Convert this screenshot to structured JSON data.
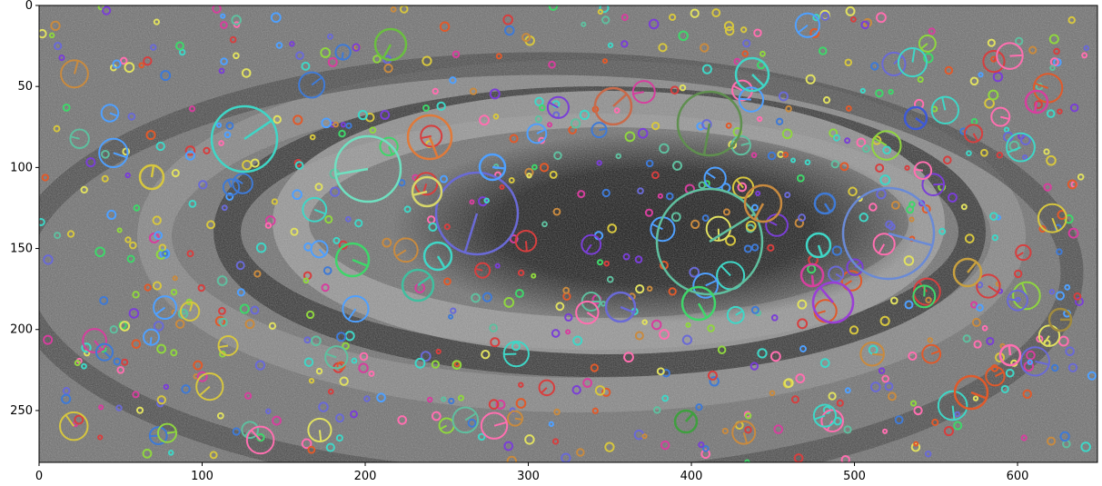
{
  "figure": {
    "x_ticks": [
      "0",
      "100",
      "200",
      "300",
      "400",
      "500",
      "600"
    ],
    "y_ticks": [
      "0",
      "50",
      "100",
      "150",
      "200",
      "250"
    ],
    "x_range": [
      0,
      649
    ],
    "y_range": [
      0,
      282
    ],
    "y_axis_inverted": true,
    "image_description_type": "grayscale noisy spiral-galaxy image with colored keypoint circles"
  },
  "colors": {
    "background": "#ffffff",
    "axis": "#000000",
    "keypoint_palette": [
      "#3fd6c6",
      "#e05a2b",
      "#7a3fd6",
      "#3fd66a",
      "#d63f9e",
      "#d6c63f",
      "#3f7ad6",
      "#d63f3f",
      "#8fd63f",
      "#c88a3f",
      "#4fa0ff",
      "#ff6fb0",
      "#6a6ad6",
      "#5fbf9f",
      "#e0e060"
    ]
  }
}
